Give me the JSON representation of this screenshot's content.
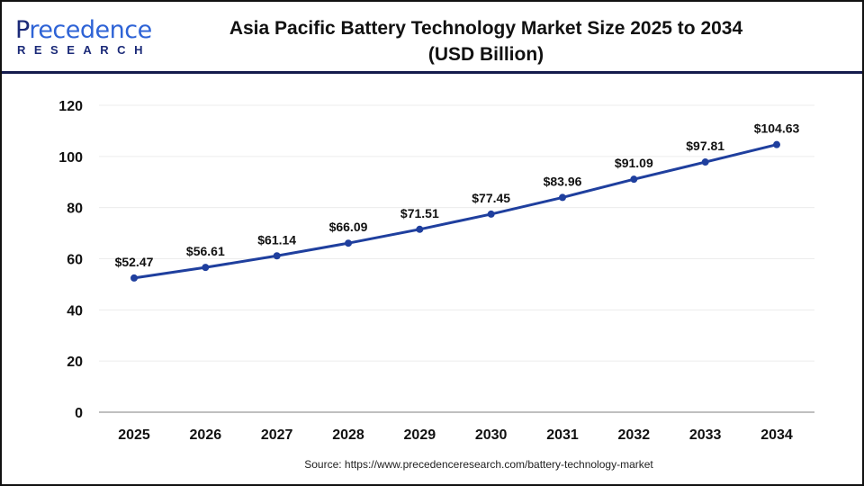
{
  "header": {
    "logo": {
      "main": "Precedence",
      "sub": "RESEARCH"
    },
    "title_line1": "Asia Pacific Battery Technology Market Size 2025 to 2034",
    "title_line2": "(USD Billion)"
  },
  "source": "Source: https://www.precedenceresearch.com/battery-technology-market",
  "chart_data": {
    "type": "line",
    "title": "Asia Pacific Battery Technology Market Size 2025 to 2034 (USD Billion)",
    "categories": [
      "2025",
      "2026",
      "2027",
      "2028",
      "2029",
      "2030",
      "2031",
      "2032",
      "2033",
      "2034"
    ],
    "values": [
      52.47,
      56.61,
      61.14,
      66.09,
      71.51,
      77.45,
      83.96,
      91.09,
      97.81,
      104.63
    ],
    "data_labels": [
      "$52.47",
      "$56.61",
      "$61.14",
      "$66.09",
      "$71.51",
      "$77.45",
      "$83.96",
      "$91.09",
      "$97.81",
      "$104.63"
    ],
    "ylim": [
      0,
      120
    ],
    "yticks": [
      0,
      20,
      40,
      60,
      80,
      100,
      120
    ],
    "grid": true,
    "line_color": "#1f3f9e",
    "xlabel": "",
    "ylabel": ""
  }
}
